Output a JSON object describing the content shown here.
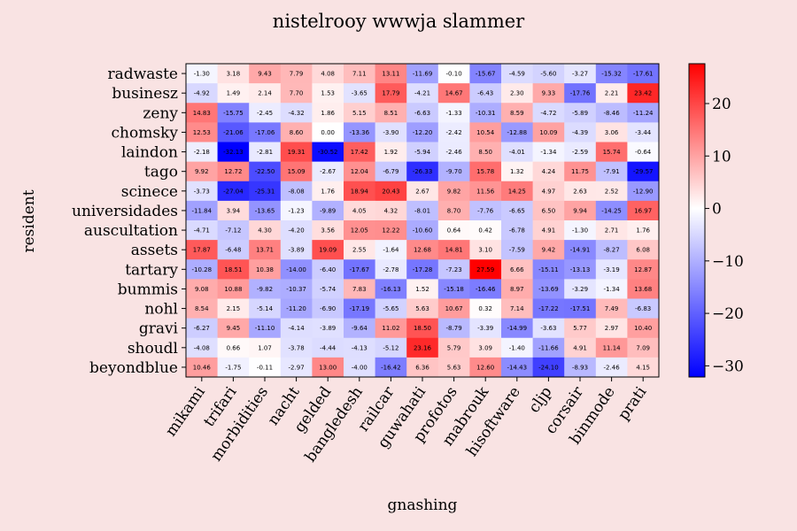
{
  "chart_data": {
    "type": "heatmap",
    "title": "nistelrooy wwwja slammer",
    "xlabel": "gnashing",
    "ylabel": "resident",
    "x_categories": [
      "mikami",
      "trifari",
      "morbidities",
      "nacht",
      "gelded",
      "bangledesh",
      "railcar",
      "guwahati",
      "profotos",
      "mabrouk",
      "hisoftware",
      "cljp",
      "corsair",
      "binmode",
      "prati"
    ],
    "y_categories": [
      "radwaste",
      "businesz",
      "zeny",
      "chomsky",
      "laindon",
      "tago",
      "scinece",
      "universidades",
      "auscultation",
      "assets",
      "tartary",
      "bummis",
      "nohl",
      "gravi",
      "shoudl",
      "beyondblue"
    ],
    "values": [
      [
        -1.3,
        3.18,
        9.43,
        7.79,
        4.08,
        7.11,
        13.11,
        -11.69,
        -0.1,
        -15.67,
        -4.59,
        -5.6,
        -3.27,
        -15.32,
        -17.61
      ],
      [
        -4.92,
        1.49,
        2.14,
        7.7,
        1.53,
        -3.65,
        17.79,
        -4.21,
        14.67,
        -6.43,
        2.3,
        9.33,
        -17.76,
        2.21,
        23.42
      ],
      [
        14.83,
        -15.75,
        -2.45,
        -4.32,
        1.86,
        5.15,
        8.51,
        -6.63,
        -1.33,
        -10.31,
        8.59,
        -4.72,
        -5.89,
        -8.46,
        -11.24
      ],
      [
        12.53,
        -21.06,
        -17.06,
        8.6,
        0.0,
        -13.36,
        -3.9,
        -12.2,
        -2.42,
        10.54,
        -12.88,
        10.09,
        -4.39,
        3.06,
        -3.44
      ],
      [
        -2.18,
        -32.13,
        -2.81,
        19.31,
        -30.52,
        17.42,
        1.92,
        -5.94,
        -2.46,
        8.5,
        -4.01,
        -1.34,
        -2.59,
        15.74,
        -0.64
      ],
      [
        9.92,
        12.72,
        -22.5,
        15.09,
        -2.67,
        12.04,
        -6.79,
        -26.33,
        -9.7,
        15.78,
        1.32,
        4.24,
        11.75,
        -7.91,
        -29.57
      ],
      [
        -3.73,
        -27.04,
        -25.31,
        -8.08,
        1.76,
        18.94,
        20.43,
        2.67,
        9.82,
        11.56,
        14.25,
        4.97,
        2.63,
        2.52,
        -12.9
      ],
      [
        -11.84,
        3.94,
        -13.65,
        -1.23,
        -9.89,
        4.05,
        4.32,
        -8.01,
        8.7,
        -7.76,
        -6.65,
        6.5,
        9.94,
        -14.25,
        16.97
      ],
      [
        -4.71,
        -7.12,
        4.3,
        -4.2,
        3.56,
        12.05,
        12.22,
        -10.6,
        0.64,
        0.42,
        -6.78,
        4.91,
        -1.3,
        2.71,
        1.76
      ],
      [
        17.87,
        -6.48,
        13.71,
        -3.89,
        19.09,
        2.55,
        -1.64,
        12.68,
        14.81,
        3.1,
        -7.59,
        9.42,
        -14.91,
        -8.27,
        6.08
      ],
      [
        -10.28,
        18.51,
        10.38,
        -14.0,
        -6.4,
        -17.67,
        -2.78,
        -17.28,
        -7.23,
        27.59,
        6.66,
        -15.11,
        -13.13,
        -3.19,
        12.87
      ],
      [
        9.08,
        10.88,
        -9.82,
        -10.37,
        -5.74,
        7.83,
        -16.13,
        1.52,
        -15.18,
        -16.46,
        8.97,
        -13.69,
        -3.29,
        -1.34,
        13.68
      ],
      [
        8.54,
        2.15,
        -5.14,
        -11.2,
        -6.9,
        -17.19,
        -5.65,
        5.63,
        10.67,
        0.32,
        7.14,
        -17.22,
        -17.51,
        7.49,
        -6.83
      ],
      [
        -6.27,
        9.45,
        -11.1,
        -4.14,
        -3.89,
        -9.64,
        11.02,
        18.5,
        -8.79,
        -3.39,
        -14.99,
        -3.63,
        5.77,
        2.97,
        10.4
      ],
      [
        -4.08,
        0.66,
        1.07,
        -3.78,
        -4.44,
        -4.13,
        -5.12,
        23.16,
        5.79,
        3.09,
        -1.4,
        -11.66,
        4.91,
        11.14,
        7.09
      ],
      [
        10.46,
        -1.75,
        -0.11,
        -2.97,
        13.0,
        -4.0,
        -16.42,
        6.36,
        5.63,
        12.6,
        -14.43,
        -24.1,
        -8.93,
        -2.46,
        4.15
      ]
    ],
    "colormap": "bwr",
    "vmin": -32.13,
    "vmax": 27.59,
    "colorbar_ticks": [
      -30,
      -20,
      -10,
      0,
      10,
      20
    ],
    "cell_label_format": "2 decimals",
    "colors": {
      "background": "#f9e3e3",
      "low": "#0000ff",
      "mid": "#ffffff",
      "high": "#ff0000"
    }
  }
}
